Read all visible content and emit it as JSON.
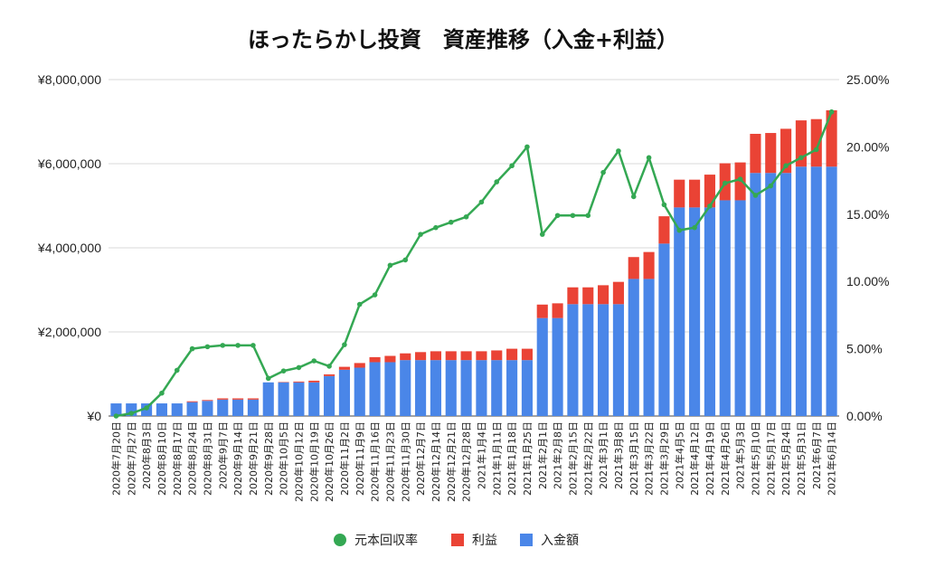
{
  "chart_data": {
    "type": "bar",
    "title": "ほったらかし投資　資産推移（入金+利益）",
    "categories": [
      "2020年7月20日",
      "2020年7月27日",
      "2020年8月3日",
      "2020年8月10日",
      "2020年8月17日",
      "2020年8月24日",
      "2020年8月31日",
      "2020年9月7日",
      "2020年9月14日",
      "2020年9月21日",
      "2020年9月28日",
      "2020年10月5日",
      "2020年10月12日",
      "2020年10月19日",
      "2020年10月26日",
      "2020年11月2日",
      "2020年11月9日",
      "2020年11月16日",
      "2020年11月23日",
      "2020年11月30日",
      "2020年12月7日",
      "2020年12月14日",
      "2020年12月21日",
      "2020年12月28日",
      "2021年1月4日",
      "2021年1月11日",
      "2021年1月18日",
      "2021年1月25日",
      "2021年2月1日",
      "2021年2月8日",
      "2021年2月15日",
      "2021年2月22日",
      "2021年3月1日",
      "2021年3月8日",
      "2021年3月15日",
      "2021年3月22日",
      "2021年3月29日",
      "2021年4月5日",
      "2021年4月12日",
      "2021年4月19日",
      "2021年4月26日",
      "2021年5月3日",
      "2021年5月10日",
      "2021年5月17日",
      "2021年5月24日",
      "2021年5月31日",
      "2021年6月7日",
      "2021年6月14日"
    ],
    "series": [
      {
        "name": "入金額",
        "kind": "bar",
        "color": "#4a86e8",
        "values": [
          300000,
          300000,
          300000,
          300000,
          300000,
          330000,
          360000,
          390000,
          390000,
          390000,
          800000,
          800000,
          800000,
          800000,
          950000,
          1100000,
          1150000,
          1280000,
          1280000,
          1330000,
          1330000,
          1330000,
          1330000,
          1330000,
          1330000,
          1330000,
          1330000,
          1330000,
          2330000,
          2330000,
          2660000,
          2660000,
          2660000,
          2660000,
          3260000,
          3260000,
          4100000,
          4960000,
          4960000,
          4960000,
          5130000,
          5130000,
          5780000,
          5780000,
          5780000,
          5930000,
          5930000,
          5930000
        ]
      },
      {
        "name": "利益",
        "kind": "bar",
        "color": "#ea4335",
        "values": [
          0,
          0,
          0,
          0,
          0,
          20000,
          20000,
          30000,
          30000,
          30000,
          0,
          10000,
          20000,
          40000,
          40000,
          70000,
          110000,
          120000,
          150000,
          160000,
          190000,
          210000,
          210000,
          210000,
          210000,
          230000,
          270000,
          270000,
          320000,
          350000,
          400000,
          400000,
          450000,
          530000,
          520000,
          640000,
          650000,
          660000,
          660000,
          780000,
          880000,
          900000,
          930000,
          950000,
          1050000,
          1100000,
          1130000,
          1340000
        ]
      },
      {
        "name": "元本回収率",
        "kind": "line",
        "axis": "right",
        "color": "#34a853",
        "values": [
          0,
          0.2,
          0.6,
          1.7,
          3.4,
          5.0,
          5.15,
          5.25,
          5.25,
          5.25,
          2.8,
          3.35,
          3.6,
          4.1,
          3.7,
          5.3,
          8.3,
          9.0,
          11.2,
          11.6,
          13.5,
          14.0,
          14.4,
          14.8,
          15.9,
          17.4,
          18.6,
          20.0,
          13.5,
          14.9,
          14.9,
          14.9,
          18.1,
          19.7,
          16.3,
          19.2,
          15.7,
          13.8,
          14.0,
          15.6,
          17.3,
          17.6,
          16.4,
          17.1,
          18.6,
          19.2,
          19.8,
          22.6
        ]
      }
    ],
    "ylim_left": [
      0,
      8000000
    ],
    "ylim_right": [
      0,
      25
    ],
    "left_ticks": [
      "¥0",
      "¥2,000,000",
      "¥4,000,000",
      "¥6,000,000",
      "¥8,000,000"
    ],
    "right_ticks": [
      "0.00%",
      "5.00%",
      "10.00%",
      "15.00%",
      "20.00%",
      "25.00%"
    ],
    "legend_position": "bottom",
    "legend": [
      "元本回収率",
      "利益",
      "入金額"
    ],
    "grid": true
  }
}
